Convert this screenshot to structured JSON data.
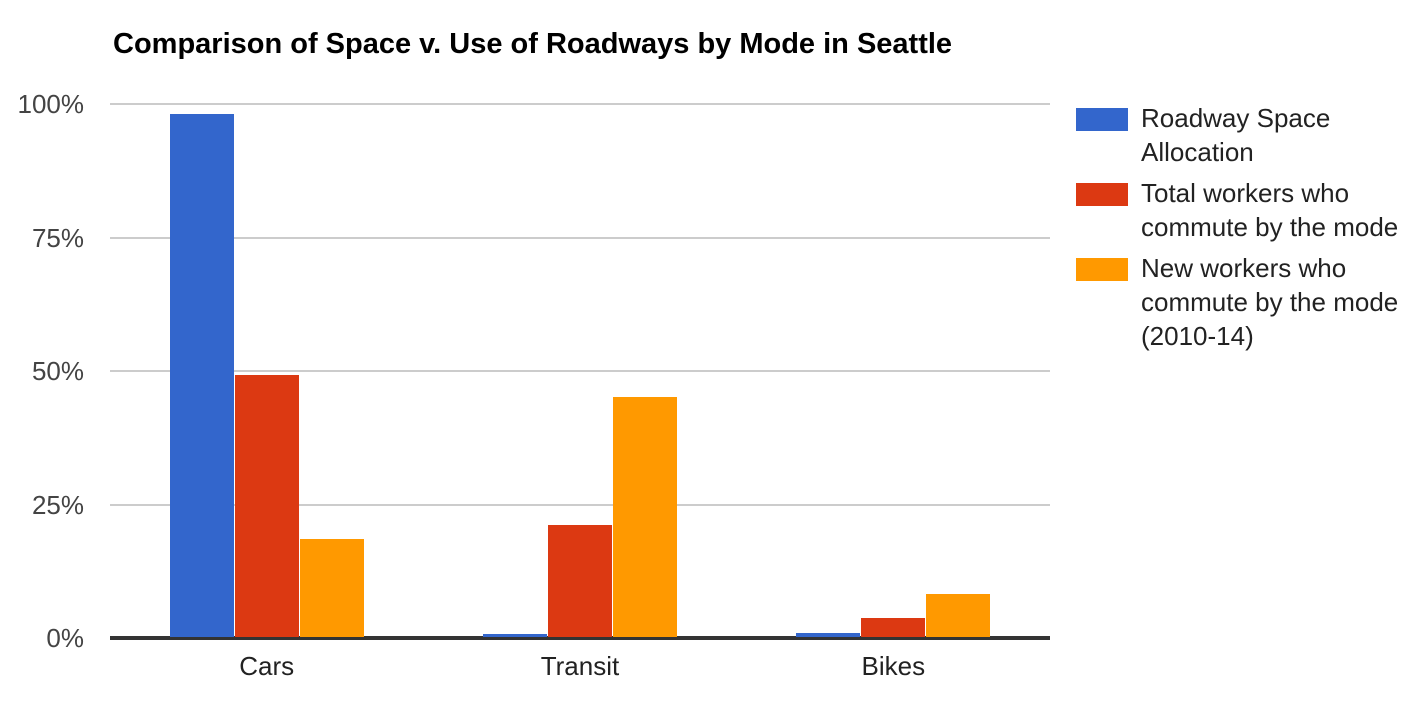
{
  "chart_data": {
    "type": "bar",
    "title": "Comparison of Space v. Use of Roadways by Mode in Seattle",
    "categories": [
      "Cars",
      "Transit",
      "Bikes"
    ],
    "series": [
      {
        "name": "Roadway Space Allocation",
        "color": "#3366CC",
        "values": [
          98,
          0.5,
          0.7
        ]
      },
      {
        "name": "Total workers who commute by the mode",
        "color": "#DC3912",
        "values": [
          49,
          21,
          3.5
        ]
      },
      {
        "name": "New workers who commute by the mode (2010-14)",
        "color": "#FF9900",
        "values": [
          18.4,
          45,
          8
        ]
      }
    ],
    "y_ticks": [
      {
        "value": 0,
        "label": "0%"
      },
      {
        "value": 25,
        "label": "25%"
      },
      {
        "value": 50,
        "label": "50%"
      },
      {
        "value": 75,
        "label": "75%"
      },
      {
        "value": 100,
        "label": "100%"
      }
    ],
    "ylim": [
      0,
      100
    ],
    "grid": true,
    "legend_position": "right",
    "colors": {
      "gridline": "#CCCCCC",
      "axis_line": "#333333",
      "y_tick_text": "#444444",
      "x_tick_text": "#222222",
      "legend_text": "#222222",
      "title_text": "#000000",
      "background": "#FFFFFF"
    }
  }
}
